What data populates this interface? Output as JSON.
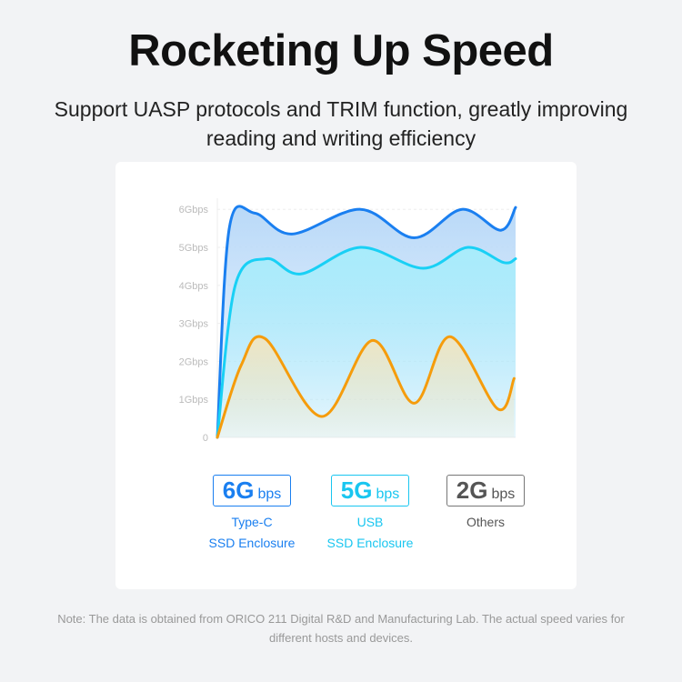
{
  "title": "Rocketing Up Speed",
  "subtitle": "Support UASP protocols and TRIM function, greatly improving reading and writing efficiency",
  "chart_data": {
    "type": "area",
    "yticks": [
      "0",
      "1Gbps",
      "2Gbps",
      "3Gbps",
      "4Gbps",
      "5Gbps",
      "6Gbps"
    ],
    "ylim": [
      0,
      6.5
    ],
    "xlim": [
      0,
      100
    ],
    "grid": true,
    "series": [
      {
        "key": "typec",
        "color": "#1a7ff0",
        "fill": "#b9d9f8",
        "points": [
          [
            0,
            0
          ],
          [
            4,
            5.5
          ],
          [
            12.5,
            5.9
          ],
          [
            25,
            5.35
          ],
          [
            48,
            6.0
          ],
          [
            66,
            5.25
          ],
          [
            82,
            6.0
          ],
          [
            95,
            5.45
          ],
          [
            100,
            6.05
          ]
        ]
      },
      {
        "key": "usb",
        "color": "#19d0f5",
        "fill": "#a8ecfb",
        "points": [
          [
            0,
            0
          ],
          [
            6,
            4.0
          ],
          [
            16.5,
            4.7
          ],
          [
            28,
            4.3
          ],
          [
            48,
            5.0
          ],
          [
            69,
            4.45
          ],
          [
            84,
            5.0
          ],
          [
            96,
            4.6
          ],
          [
            100,
            4.7
          ]
        ]
      },
      {
        "key": "others",
        "color": "#f59c0c",
        "fill": "#efe5c2",
        "points": [
          [
            0,
            0
          ],
          [
            8,
            1.9
          ],
          [
            16,
            2.6
          ],
          [
            35,
            0.55
          ],
          [
            52,
            2.55
          ],
          [
            66,
            0.9
          ],
          [
            78,
            2.65
          ],
          [
            94,
            0.75
          ],
          [
            99.5,
            1.55
          ]
        ]
      }
    ]
  },
  "legend": [
    {
      "value": "6G",
      "unit": "bps",
      "line1": "Type-C",
      "line2": "SSD Enclosure",
      "color": "#1a7ff0"
    },
    {
      "value": "5G",
      "unit": "bps",
      "line1": "USB",
      "line2": "SSD Enclosure",
      "color": "#19c6f0"
    },
    {
      "value": "2G",
      "unit": "bps",
      "line1": "Others",
      "line2": "",
      "color": "#555555"
    }
  ],
  "note": "Note: The data is obtained from ORICO 211 Digital R&D and Manufacturing Lab. The actual speed varies for different hosts and devices."
}
